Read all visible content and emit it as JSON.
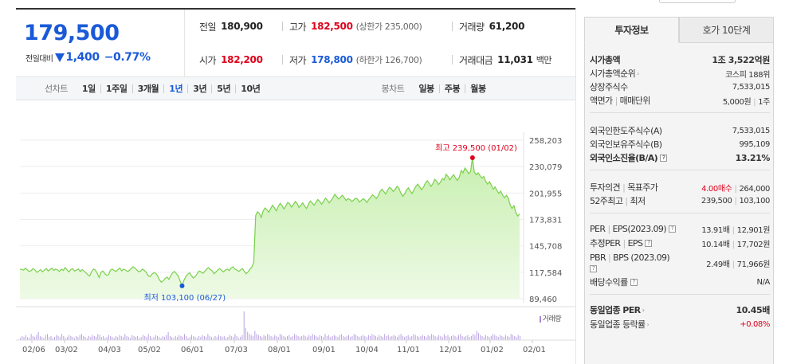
{
  "price": {
    "current": "179,500",
    "change_label": "전일대비",
    "change_value": "1,400",
    "change_pct": "−0.77%"
  },
  "quotes": {
    "row1": [
      {
        "label": "전일",
        "value": "180,900",
        "color": "black",
        "sub": ""
      },
      {
        "label": "고가",
        "value": "182,500",
        "color": "red",
        "sub": "(상한가 235,000)"
      },
      {
        "label": "거래량",
        "value": "61,200",
        "color": "black",
        "sub": ""
      }
    ],
    "row2": [
      {
        "label": "시가",
        "value": "182,200",
        "color": "red",
        "sub": ""
      },
      {
        "label": "저가",
        "value": "178,800",
        "color": "blue",
        "sub": "(하한가 126,700)"
      },
      {
        "label": "거래대금",
        "value": "11,031",
        "color": "black",
        "sub": "백만"
      }
    ]
  },
  "toolbar": {
    "line_title": "선차트",
    "line_items": [
      "1일",
      "1주일",
      "3개월",
      "1년",
      "3년",
      "5년",
      "10년"
    ],
    "line_active": "1년",
    "candle_title": "봉차트",
    "candle_items": [
      "일봉",
      "주봉",
      "월봉"
    ]
  },
  "chart_data": {
    "type": "area",
    "y_ticks": [
      "258,203",
      "230,079",
      "201,955",
      "173,831",
      "145,708",
      "117,584",
      "89,460"
    ],
    "ylim": [
      89460,
      258203
    ],
    "x_ticks": [
      "02/06",
      "03/02",
      "04/03",
      "05/02",
      "06/01",
      "07/03",
      "08/01",
      "09/01",
      "10/04",
      "11/01",
      "12/01",
      "01/02",
      "02/01"
    ],
    "max_annotation": "최고 239,500 (01/02)",
    "min_annotation": "최저 103,100 (06/27)",
    "volume_label": "거래량",
    "line_color": "#7ad04b",
    "fill_color": "#d7f5c2",
    "series": [
      {
        "values": [
          121000,
          120500,
          119800,
          122000,
          120000,
          118500,
          119500,
          121500,
          120000,
          117500,
          119000,
          120500,
          118000,
          120000,
          121500,
          119000,
          120500,
          122000,
          119500,
          121000,
          120000,
          118500,
          121000,
          119500,
          122500,
          120000,
          118000,
          120500,
          121500,
          119000,
          120000,
          121000,
          118500,
          120500,
          119000,
          117000,
          115000,
          113500,
          118000,
          121000,
          120000,
          116500,
          112000,
          117500,
          119000,
          116000,
          114500,
          115000,
          120000,
          121000,
          119500,
          118500,
          120500,
          122000,
          119000,
          121000,
          120000,
          118500,
          119500,
          121500,
          123500,
          122000,
          120000,
          118000,
          119000,
          121000,
          119500,
          117500,
          114000,
          113000,
          115500,
          117000,
          116500,
          114000,
          109500,
          107000,
          108500,
          111000,
          112500,
          110000,
          114000,
          117000,
          118500,
          116000,
          113500,
          108000,
          103100,
          109000,
          113000,
          115500,
          117000,
          114000,
          111500,
          113000,
          116000,
          119000,
          118000,
          116500,
          118500,
          121000,
          122500,
          120500,
          119000,
          116000,
          118000,
          120000,
          121500,
          119500,
          118000,
          120000,
          121000,
          119500,
          122000,
          123500,
          121000,
          120000,
          118500,
          120000,
          121500,
          118500,
          116000,
          118000,
          121000,
          123000,
          128000,
          178000,
          182000,
          180000,
          176000,
          183000,
          186000,
          184000,
          181500,
          185500,
          189000,
          186000,
          183000,
          187500,
          191000,
          188500,
          185000,
          188000,
          192000,
          190500,
          187000,
          189500,
          193000,
          191000,
          186500,
          189000,
          191500,
          188000,
          185500,
          190000,
          193500,
          191500,
          189000,
          192000,
          195000,
          193000,
          190000,
          193000,
          196500,
          194500,
          191500,
          194000,
          197000,
          200500,
          198000,
          195500,
          197500,
          199500,
          197000,
          194000,
          196000,
          195000,
          193000,
          194500,
          196500,
          195500,
          192500,
          194000,
          196000,
          194500,
          192000,
          195000,
          197500,
          200000,
          198500,
          196000,
          199000,
          203500,
          206000,
          203500,
          201000,
          205000,
          208000,
          206500,
          203500,
          206000,
          209000,
          207000,
          202000,
          198500,
          201000,
          205000,
          207500,
          204000,
          201500,
          205500,
          209000,
          211500,
          208500,
          205500,
          208000,
          212500,
          215000,
          212500,
          209000,
          212000,
          216500,
          214500,
          211000,
          213500,
          217500,
          216000,
          222000,
          219500,
          216000,
          219000,
          221500,
          218000,
          215500,
          218500,
          226000,
          223500,
          228500,
          226000,
          222500,
          225000,
          239500,
          224000,
          221500,
          223500,
          220500,
          218000,
          219500,
          214500,
          211500,
          214000,
          210500,
          206000,
          208500,
          204500,
          201500,
          204000,
          199500,
          197000,
          199500,
          196500,
          189000,
          185500,
          188500,
          181000,
          177500,
          179500
        ]
      }
    ],
    "volume": [
      2,
      4,
      3,
      5,
      3,
      2,
      6,
      4,
      3,
      5,
      8,
      4,
      3,
      2,
      5,
      6,
      3,
      4,
      2,
      3,
      5,
      4,
      3,
      6,
      4,
      2,
      3,
      5,
      4,
      3,
      2,
      4,
      3,
      5,
      6,
      4,
      3,
      2,
      4,
      3,
      5,
      4,
      3,
      6,
      5,
      3,
      4,
      2,
      3,
      5,
      4,
      3,
      2,
      4,
      3,
      5,
      4,
      3,
      6,
      4,
      3,
      2,
      5,
      4,
      3,
      4,
      2,
      3,
      5,
      4,
      3,
      6,
      4,
      2,
      3,
      5,
      4,
      3,
      2,
      4,
      3,
      5,
      8,
      4,
      3,
      2,
      4,
      3,
      5,
      4,
      3,
      6,
      4,
      2,
      3,
      5,
      4,
      3,
      2,
      4,
      3,
      5,
      4,
      3,
      6,
      4,
      3,
      2,
      4,
      3,
      5,
      4,
      3,
      4,
      2,
      3,
      5,
      4,
      3,
      6,
      4,
      2,
      3,
      5,
      28,
      12,
      8,
      6,
      5,
      4,
      9,
      6,
      5,
      4,
      3,
      5,
      4,
      6,
      5,
      4,
      3,
      5,
      4,
      3,
      6,
      5,
      4,
      3,
      4,
      5,
      3,
      4,
      6,
      5,
      4,
      3,
      4,
      5,
      4,
      3,
      5,
      4,
      6,
      5,
      4,
      3,
      5,
      4,
      3,
      6,
      4,
      5,
      3,
      4,
      5,
      4,
      3,
      5,
      6,
      4,
      3,
      4,
      5,
      3,
      4,
      6,
      5,
      4,
      3,
      4,
      5,
      4,
      3,
      5,
      4,
      6,
      5,
      4,
      3,
      5,
      4,
      3,
      6,
      4,
      5,
      3,
      4,
      5,
      4,
      3,
      5,
      6,
      4,
      3,
      4,
      5,
      3,
      4,
      6,
      5,
      4,
      3,
      4,
      5,
      4,
      3,
      5,
      4,
      6,
      5,
      4,
      3,
      5,
      4,
      3,
      6,
      4,
      5,
      3,
      4,
      5,
      4,
      3,
      5,
      6,
      4,
      3,
      4,
      5,
      3,
      4,
      6,
      5,
      9,
      7,
      5,
      4,
      3,
      5,
      4,
      3,
      4,
      6,
      5,
      4,
      3,
      5,
      4,
      3,
      5,
      4,
      3,
      6,
      5,
      4,
      3,
      5,
      4
    ]
  },
  "tabs": {
    "info": "투자정보",
    "orderbook": "호가 10단계"
  },
  "info": {
    "s1": [
      {
        "label": "시가총액",
        "value": "1조 3,522억원",
        "bold": true
      },
      {
        "label": "시가총액순위",
        "value": "코스피 188위",
        "caret": true
      },
      {
        "label": "상장주식수",
        "value": "7,533,015"
      },
      {
        "label": "액면가",
        "label2": "매매단위",
        "value": "5,000원",
        "value2": "1주"
      }
    ],
    "s2": [
      {
        "label": "외국인한도주식수(A)",
        "value": "7,533,015"
      },
      {
        "label": "외국인보유주식수(B)",
        "value": "995,109"
      },
      {
        "label": "외국인소진율(B/A)",
        "value": "13.21%",
        "bold": true,
        "q": true
      }
    ],
    "s3": [
      {
        "label": "투자의견",
        "label2": "목표주가",
        "value": "4.00매수",
        "value2": "264,000"
      },
      {
        "label": "52주최고",
        "label2": "최저",
        "value": "239,500",
        "value2": "103,100"
      }
    ],
    "s4": {
      "per_label": "PER",
      "eps_label": "EPS(2023.09)",
      "per": "13.91배",
      "eps": "12,901원",
      "est_per_label": "추정PER",
      "est_eps_label": "EPS",
      "est_per": "10.14배",
      "est_eps": "17,702원",
      "pbr_label": "PBR",
      "bps_label": "BPS (2023.09)",
      "pbr": "2.49배",
      "bps": "71,966원",
      "div_label": "배당수익률",
      "div": "N/A"
    },
    "s5": [
      {
        "label": "동일업종 PER",
        "value": "10.45배",
        "bold": true
      },
      {
        "label": "동일업종 등락률",
        "value": "+0.08%",
        "red": true
      }
    ]
  }
}
